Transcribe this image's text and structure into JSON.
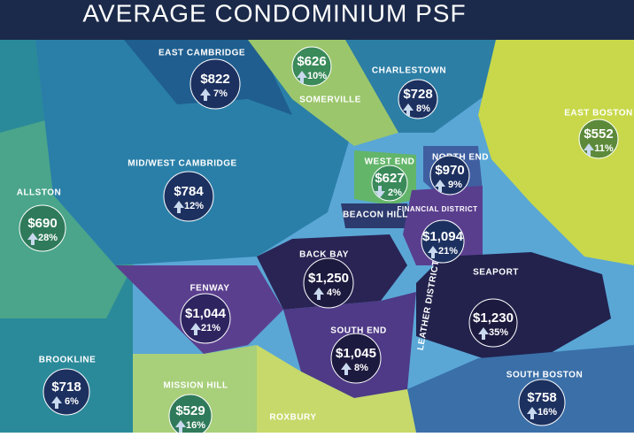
{
  "title": "AVERAGE CONDOMINIUM PSF",
  "neighborhoods": [
    {
      "name": "EAST CAMBRIDGE",
      "price": "$822",
      "change": "7%",
      "direction": "up"
    },
    {
      "name": "SOMERVILLE",
      "price": "$626",
      "change": "10%",
      "direction": "up"
    },
    {
      "name": "CHARLESTOWN",
      "price": "$728",
      "change": "8%",
      "direction": "up"
    },
    {
      "name": "EAST BOSTON",
      "price": "$552",
      "change": "11%",
      "direction": "up"
    },
    {
      "name": "MID/WEST CAMBRIDGE",
      "price": "$784",
      "change": "12%",
      "direction": "up"
    },
    {
      "name": "WEST END",
      "price": "$627",
      "change": "2%",
      "direction": "down"
    },
    {
      "name": "NORTH END",
      "price": "$970",
      "change": "9%",
      "direction": "up"
    },
    {
      "name": "ALLSTON",
      "price": "$690",
      "change": "28%",
      "direction": "up"
    },
    {
      "name": "BEACON HILL"
    },
    {
      "name": "FINANCIAL DISTRICT",
      "price": "$1,094",
      "change": "21%",
      "direction": "up"
    },
    {
      "name": "BACK BAY",
      "price": "$1,250",
      "change": "4%",
      "direction": "up"
    },
    {
      "name": "FENWAY",
      "price": "$1,044",
      "change": "21%",
      "direction": "up"
    },
    {
      "name": "SOUTH END",
      "price": "$1,045",
      "change": "8%",
      "direction": "up"
    },
    {
      "name": "SEAPORT",
      "price": "$1,230",
      "change": "35%",
      "direction": "up"
    },
    {
      "name": "LEATHER DISTRICT"
    },
    {
      "name": "SOUTH BOSTON",
      "price": "$758",
      "change": "16%",
      "direction": "up"
    },
    {
      "name": "BROOKLINE",
      "price": "$718",
      "change": "6%",
      "direction": "up"
    },
    {
      "name": "MISSION HILL",
      "price": "$529",
      "change": "16%",
      "direction": "up"
    },
    {
      "name": "ROXBURY"
    }
  ]
}
